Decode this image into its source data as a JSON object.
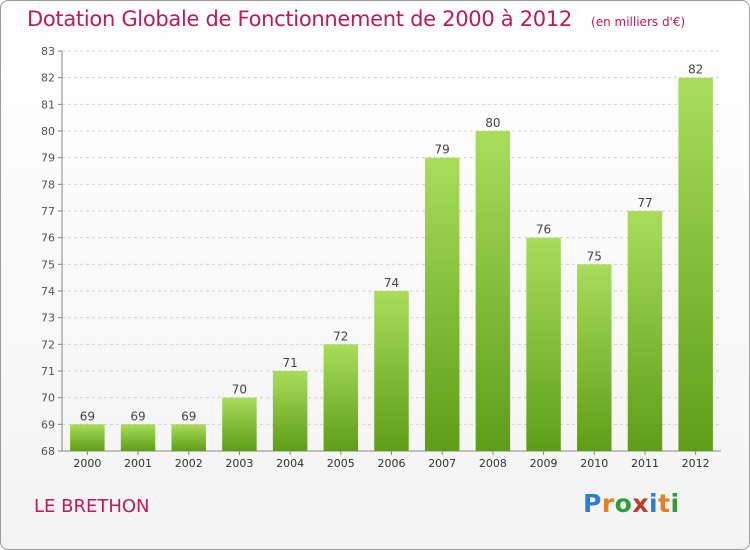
{
  "title": "Dotation Globale de Fonctionnement de 2000 à 2012",
  "subtitle": "(en milliers d'€)",
  "place": "LE BRETHON",
  "logo": {
    "text": "Proxiti",
    "letters": [
      "P",
      "r",
      "o",
      "x",
      "i",
      "t",
      "i"
    ],
    "colors": [
      "#2a7fd4",
      "#e67e22",
      "#2e9e3a",
      "#c0392b",
      "#2a7fd4",
      "#e67e22",
      "#2e9e3a"
    ]
  },
  "colors": {
    "bar_top": "#a8dd5a",
    "bar_bottom": "#5e9e16",
    "title": "#c2185b",
    "grid": "#d0d0d0"
  },
  "chart_data": {
    "type": "bar",
    "categories": [
      "2000",
      "2001",
      "2002",
      "2003",
      "2004",
      "2005",
      "2006",
      "2007",
      "2008",
      "2009",
      "2010",
      "2011",
      "2012"
    ],
    "values": [
      69,
      69,
      69,
      70,
      71,
      72,
      74,
      79,
      80,
      76,
      75,
      77,
      82
    ],
    "title": "Dotation Globale de Fonctionnement de 2000 à 2012",
    "subtitle": "(en milliers d'€)",
    "xlabel": "",
    "ylabel": "",
    "ylim": [
      68,
      83
    ],
    "yticks": [
      68,
      69,
      70,
      71,
      72,
      73,
      74,
      75,
      76,
      77,
      78,
      79,
      80,
      81,
      82,
      83
    ],
    "grid": true,
    "legend": "none"
  }
}
